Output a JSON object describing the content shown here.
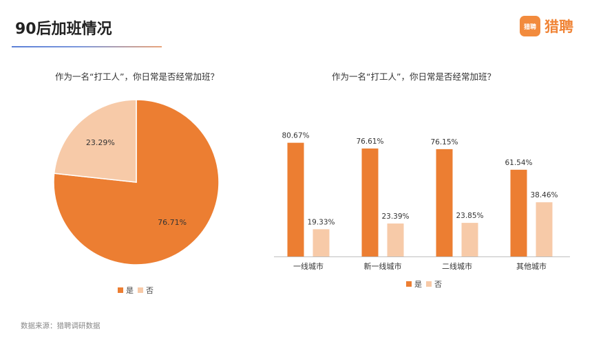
{
  "header": {
    "title": "90后加班情况",
    "logo_badge": "猎聘",
    "logo_text": "猎聘"
  },
  "colors": {
    "yes": "#ec7e32",
    "no": "#f7caa8",
    "axis": "#bfbfbf"
  },
  "chart_data": [
    {
      "type": "pie",
      "title": "作为一名“打工人”，你日常是否经常加班？",
      "labels": [
        "是",
        "否"
      ],
      "values": [
        76.71,
        23.29
      ],
      "value_labels": [
        "76.71%",
        "23.29%"
      ],
      "legend": "bottom"
    },
    {
      "type": "bar",
      "title": "作为一名“打工人”，你日常是否经常加班？",
      "categories": [
        "一线城市",
        "新一线城市",
        "二线城市",
        "其他城市"
      ],
      "series": [
        {
          "name": "是",
          "values": [
            80.67,
            76.61,
            76.15,
            61.54
          ],
          "value_labels": [
            "80.67%",
            "76.61%",
            "76.15%",
            "61.54%"
          ]
        },
        {
          "name": "否",
          "values": [
            19.33,
            23.39,
            23.85,
            38.46
          ],
          "value_labels": [
            "19.33%",
            "23.39%",
            "23.85%",
            "38.46%"
          ]
        }
      ],
      "legend": "bottom"
    }
  ],
  "footer": {
    "source": "数据来源：猎聘调研数据"
  }
}
